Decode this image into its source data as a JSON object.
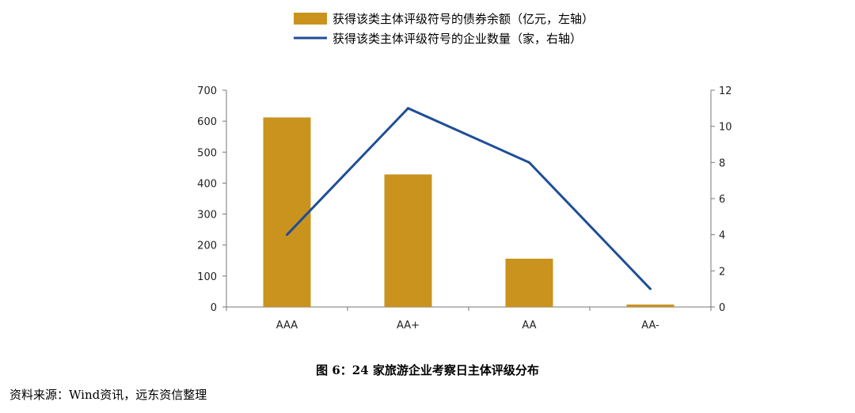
{
  "chart_data": {
    "type": "bar",
    "categories": [
      "AAA",
      "AA+",
      "AA",
      "AA-"
    ],
    "series": [
      {
        "name": "获得该类主体评级符号的债券余额（亿元，左轴）",
        "kind": "bar",
        "axis": "left",
        "color": "#C9931E",
        "values": [
          612,
          428,
          156,
          8
        ]
      },
      {
        "name": "获得该类主体评级符号的企业数量（家，右轴）",
        "kind": "line",
        "axis": "right",
        "color": "#1F4E96",
        "values": [
          4,
          11,
          8,
          1
        ]
      }
    ],
    "left_axis": {
      "ylim": [
        0,
        700
      ],
      "ticks": [
        "0",
        "100",
        "200",
        "300",
        "400",
        "500",
        "600",
        "700"
      ]
    },
    "right_axis": {
      "ylim": [
        0,
        12
      ],
      "ticks": [
        "0",
        "2",
        "4",
        "6",
        "8",
        "10",
        "12"
      ]
    },
    "legend_position": "top-center",
    "grid": false
  },
  "caption": "图 6：24 家旅游企业考察日主体评级分布",
  "source": "资料来源：Wind资讯，远东资信整理"
}
